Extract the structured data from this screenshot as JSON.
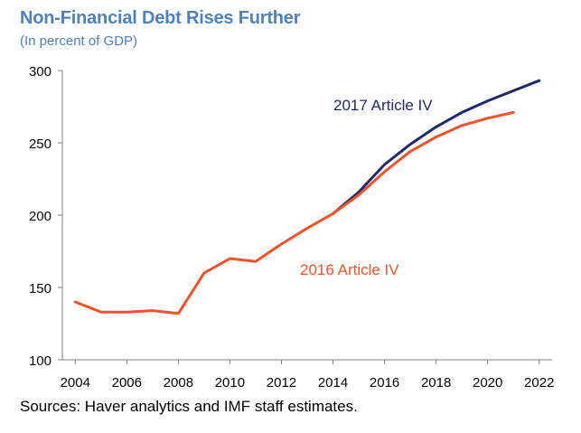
{
  "header": {
    "title": "Non-Financial Debt Rises Further",
    "subtitle": "(In percent of GDP)"
  },
  "footer": {
    "source": "Sources: Haver analytics and IMF staff estimates."
  },
  "colors": {
    "title": "#4f81bd",
    "series_2017": "#1f2a6b",
    "series_2016": "#f0522a",
    "axis": "#808080"
  },
  "chart_data": {
    "type": "line",
    "title": "Non-Financial Debt Rises Further",
    "subtitle": "(In percent of GDP)",
    "xlabel": "",
    "ylabel": "",
    "xlim": [
      2003.5,
      2022.5
    ],
    "ylim": [
      100,
      300
    ],
    "x_ticks": [
      2004,
      2006,
      2008,
      2010,
      2012,
      2014,
      2016,
      2018,
      2020,
      2022
    ],
    "y_ticks": [
      100,
      150,
      200,
      250,
      300
    ],
    "grid": false,
    "legend": "inline labels",
    "series": [
      {
        "name": "2017 Article IV",
        "color": "#1f2a6b",
        "x": [
          2014,
          2015,
          2016,
          2017,
          2018,
          2019,
          2020,
          2021,
          2022
        ],
        "values": [
          201,
          216,
          235,
          249,
          261,
          271,
          279,
          286,
          293
        ]
      },
      {
        "name": "2016 Article IV",
        "color": "#f0522a",
        "x": [
          2004,
          2005,
          2006,
          2007,
          2008,
          2009,
          2010,
          2011,
          2012,
          2013,
          2014,
          2015,
          2016,
          2017,
          2018,
          2019,
          2020,
          2021
        ],
        "values": [
          140,
          133,
          133,
          134,
          132,
          160,
          170,
          168,
          180,
          191,
          201,
          214,
          230,
          244,
          254,
          262,
          267,
          271
        ]
      }
    ]
  }
}
